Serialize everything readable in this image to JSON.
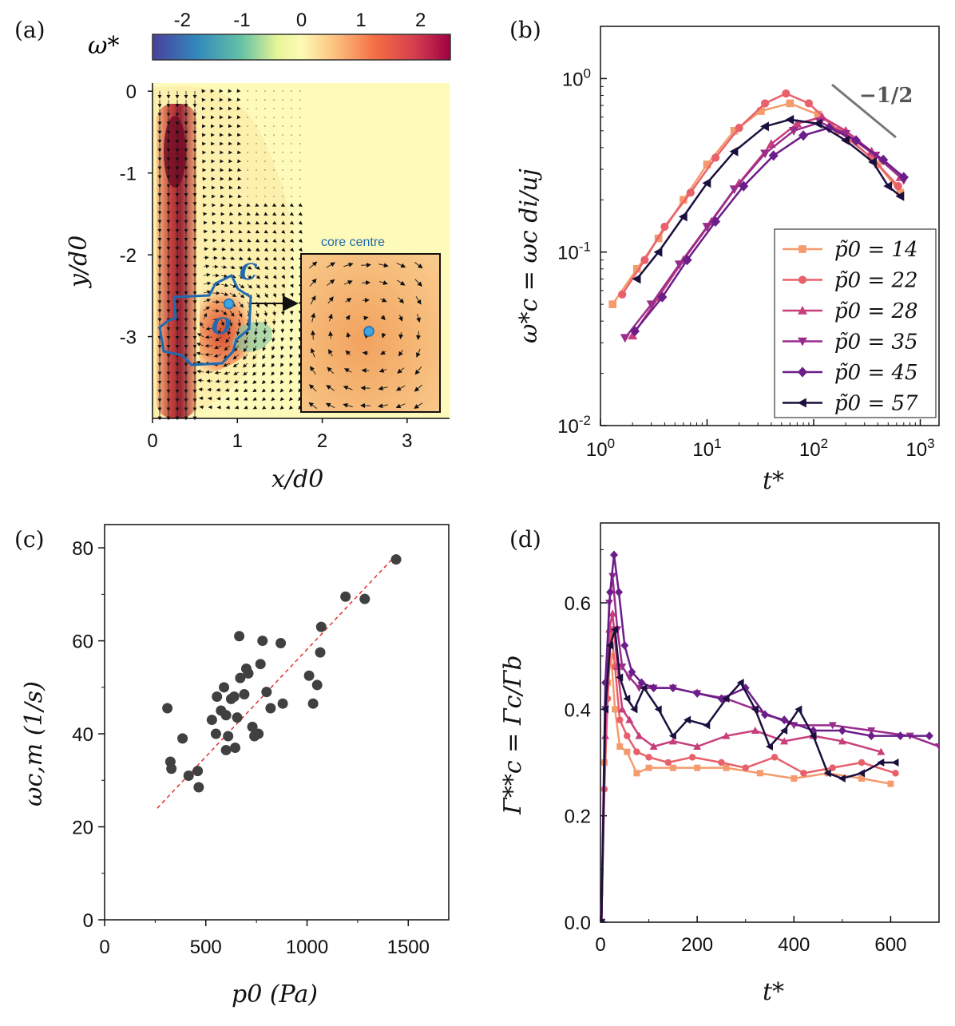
{
  "panel_labels": {
    "a": "(a)",
    "b": "(b)",
    "c": "(c)",
    "d": "(d)"
  },
  "colors": {
    "p14": "#f59a6d",
    "p22": "#e8606a",
    "p28": "#c83e7a",
    "p35": "#9a2c8c",
    "p45": "#6b1d8a",
    "p57": "#1b0f3d",
    "fit_line": "#e03030",
    "scatter": "#404040",
    "contour": "#1f6ab2"
  },
  "chart_data": [
    {
      "id": "a",
      "type": "heatmap",
      "colorbar_label": "ω*",
      "colorbar_ticks": [
        "-2",
        "-1",
        "0",
        "1",
        "2"
      ],
      "colorbar_range": [
        -2.5,
        2.5
      ],
      "xlabel": "x/d0",
      "ylabel": "y/d0",
      "x_ticks": [
        "0",
        "1",
        "2",
        "3"
      ],
      "y_ticks": [
        "0",
        "-1",
        "-2",
        "-3"
      ],
      "xlim": [
        0,
        3.5
      ],
      "ylim": [
        -4,
        0.1
      ],
      "contour_label": "C",
      "centre_label": "O",
      "centre": {
        "x": 0.9,
        "y": -2.6
      },
      "inset_label": "core centre"
    },
    {
      "id": "b",
      "type": "line",
      "xscale": "log",
      "yscale": "log",
      "xlabel": "t*",
      "ylabel": "ω*c = ωc di/uj",
      "xlim": [
        1,
        1500
      ],
      "ylim": [
        0.01,
        2
      ],
      "x_ticks": [
        "10^0",
        "10^1",
        "10^2",
        "10^3"
      ],
      "y_ticks": [
        "10^-2",
        "10^-1",
        "10^0"
      ],
      "slope_label": "−1/2",
      "legend_prefix": "p̃0 =",
      "series": [
        {
          "name": "14",
          "color_key": "p14",
          "marker": "square",
          "x": [
            1.3,
            2.2,
            3.5,
            6,
            10,
            18,
            32,
            60,
            110,
            220,
            400,
            650
          ],
          "y": [
            0.05,
            0.08,
            0.12,
            0.2,
            0.32,
            0.5,
            0.65,
            0.72,
            0.62,
            0.45,
            0.32,
            0.22
          ]
        },
        {
          "name": "22",
          "color_key": "p22",
          "marker": "circle",
          "x": [
            1.6,
            2.6,
            4,
            7,
            12,
            20,
            35,
            55,
            90,
            170,
            350,
            620
          ],
          "y": [
            0.057,
            0.09,
            0.14,
            0.22,
            0.35,
            0.52,
            0.72,
            0.82,
            0.72,
            0.5,
            0.35,
            0.24
          ]
        },
        {
          "name": "28",
          "color_key": "p28",
          "marker": "triangle-up",
          "x": [
            2,
            3.5,
            6,
            11,
            20,
            40,
            70,
            120,
            200,
            350,
            650
          ],
          "y": [
            0.033,
            0.055,
            0.09,
            0.15,
            0.25,
            0.42,
            0.55,
            0.6,
            0.5,
            0.38,
            0.27
          ]
        },
        {
          "name": "35",
          "color_key": "p35",
          "marker": "triangle-down",
          "x": [
            1.7,
            3,
            5.5,
            10,
            18,
            35,
            65,
            115,
            200,
            380,
            700
          ],
          "y": [
            0.032,
            0.05,
            0.085,
            0.14,
            0.23,
            0.37,
            0.5,
            0.56,
            0.48,
            0.36,
            0.26
          ]
        },
        {
          "name": "45",
          "color_key": "p45",
          "marker": "diamond",
          "x": [
            2.1,
            3.8,
            6.5,
            12,
            22,
            42,
            80,
            140,
            250,
            450,
            700
          ],
          "y": [
            0.035,
            0.055,
            0.09,
            0.15,
            0.24,
            0.36,
            0.47,
            0.52,
            0.44,
            0.34,
            0.27
          ]
        },
        {
          "name": "57",
          "color_key": "p57",
          "marker": "triangle-left",
          "x": [
            2.2,
            3.5,
            6,
            10,
            18,
            35,
            60,
            110,
            200,
            360,
            500,
            650
          ],
          "y": [
            0.07,
            0.1,
            0.16,
            0.25,
            0.38,
            0.53,
            0.58,
            0.55,
            0.44,
            0.33,
            0.24,
            0.21
          ]
        }
      ]
    },
    {
      "id": "c",
      "type": "scatter",
      "xlabel": "p0 (Pa)",
      "ylabel": "ωc,m (1/s)",
      "xlim": [
        0,
        1700
      ],
      "ylim": [
        0,
        85
      ],
      "x_ticks": [
        "0",
        "500",
        "1000",
        "1500"
      ],
      "y_ticks": [
        "0",
        "20",
        "40",
        "60",
        "80"
      ],
      "points": [
        [
          310,
          45.5
        ],
        [
          325,
          34
        ],
        [
          330,
          32.5
        ],
        [
          385,
          39
        ],
        [
          415,
          31
        ],
        [
          460,
          32
        ],
        [
          465,
          28.5
        ],
        [
          530,
          43
        ],
        [
          550,
          40
        ],
        [
          555,
          48
        ],
        [
          575,
          45
        ],
        [
          590,
          50
        ],
        [
          600,
          44
        ],
        [
          600,
          36.5
        ],
        [
          610,
          39.5
        ],
        [
          625,
          47.5
        ],
        [
          640,
          48
        ],
        [
          645,
          37
        ],
        [
          655,
          43.5
        ],
        [
          665,
          61
        ],
        [
          670,
          52
        ],
        [
          690,
          48.5
        ],
        [
          700,
          54
        ],
        [
          710,
          53
        ],
        [
          730,
          41.5
        ],
        [
          740,
          39.5
        ],
        [
          760,
          40
        ],
        [
          770,
          55
        ],
        [
          780,
          60
        ],
        [
          800,
          49
        ],
        [
          820,
          45.5
        ],
        [
          870,
          59.5
        ],
        [
          880,
          46.5
        ],
        [
          1010,
          52.5
        ],
        [
          1030,
          46.5
        ],
        [
          1050,
          50.5
        ],
        [
          1065,
          57.5
        ],
        [
          1070,
          63
        ],
        [
          1190,
          69.5
        ],
        [
          1285,
          69
        ],
        [
          1440,
          77.5
        ]
      ],
      "fit": {
        "x": [
          260,
          1430
        ],
        "y": [
          24,
          78
        ]
      }
    },
    {
      "id": "d",
      "type": "line",
      "xlabel": "t*",
      "ylabel": "Γ**c = Γc/Γb",
      "xlim": [
        0,
        700
      ],
      "ylim": [
        0,
        0.75
      ],
      "x_ticks": [
        "0",
        "200",
        "400",
        "600"
      ],
      "y_ticks": [
        "0.0",
        "0.2",
        "0.4",
        "0.6"
      ],
      "series": [
        {
          "name": "14",
          "color_key": "p14",
          "marker": "square",
          "x": [
            2,
            8,
            15,
            22,
            30,
            40,
            55,
            75,
            100,
            150,
            200,
            260,
            330,
            400,
            470,
            540,
            600
          ],
          "y": [
            0.0,
            0.3,
            0.45,
            0.5,
            0.4,
            0.33,
            0.32,
            0.28,
            0.29,
            0.29,
            0.29,
            0.29,
            0.28,
            0.27,
            0.28,
            0.27,
            0.26
          ]
        },
        {
          "name": "22",
          "color_key": "p22",
          "marker": "circle",
          "x": [
            2,
            8,
            15,
            22,
            30,
            40,
            55,
            75,
            100,
            140,
            190,
            250,
            300,
            360,
            420,
            480,
            540,
            610
          ],
          "y": [
            0.0,
            0.25,
            0.42,
            0.55,
            0.48,
            0.38,
            0.35,
            0.32,
            0.31,
            0.3,
            0.31,
            0.3,
            0.29,
            0.31,
            0.28,
            0.29,
            0.3,
            0.28
          ]
        },
        {
          "name": "28",
          "color_key": "p28",
          "marker": "triangle-up",
          "x": [
            2,
            10,
            18,
            25,
            35,
            45,
            60,
            80,
            110,
            150,
            200,
            260,
            320,
            380,
            440,
            500,
            580
          ],
          "y": [
            0.0,
            0.35,
            0.55,
            0.58,
            0.48,
            0.4,
            0.38,
            0.35,
            0.33,
            0.34,
            0.33,
            0.35,
            0.36,
            0.34,
            0.35,
            0.34,
            0.32
          ]
        },
        {
          "name": "35",
          "color_key": "p35",
          "marker": "triangle-down",
          "x": [
            2,
            10,
            18,
            25,
            35,
            45,
            60,
            80,
            110,
            150,
            200,
            260,
            320,
            400,
            480,
            560,
            640,
            700
          ],
          "y": [
            0.0,
            0.4,
            0.6,
            0.65,
            0.55,
            0.48,
            0.46,
            0.44,
            0.44,
            0.44,
            0.43,
            0.42,
            0.4,
            0.37,
            0.37,
            0.36,
            0.35,
            0.33
          ]
        },
        {
          "name": "45",
          "color_key": "p45",
          "marker": "diamond",
          "x": [
            2,
            10,
            20,
            28,
            38,
            50,
            65,
            85,
            110,
            150,
            200,
            250,
            300,
            340,
            380,
            440,
            500,
            560,
            620,
            680
          ],
          "y": [
            0.0,
            0.45,
            0.62,
            0.69,
            0.62,
            0.52,
            0.47,
            0.45,
            0.44,
            0.44,
            0.43,
            0.42,
            0.44,
            0.39,
            0.38,
            0.36,
            0.36,
            0.35,
            0.35,
            0.35
          ]
        },
        {
          "name": "57",
          "color_key": "p57",
          "marker": "triangle-left",
          "x": [
            2,
            10,
            20,
            30,
            40,
            55,
            70,
            90,
            120,
            150,
            180,
            220,
            260,
            290,
            320,
            350,
            380,
            410,
            440,
            470,
            500,
            540,
            580,
            610
          ],
          "y": [
            0.0,
            0.4,
            0.52,
            0.55,
            0.46,
            0.42,
            0.4,
            0.44,
            0.4,
            0.35,
            0.38,
            0.37,
            0.42,
            0.45,
            0.4,
            0.33,
            0.36,
            0.4,
            0.35,
            0.28,
            0.27,
            0.28,
            0.3,
            0.3
          ]
        }
      ]
    }
  ]
}
